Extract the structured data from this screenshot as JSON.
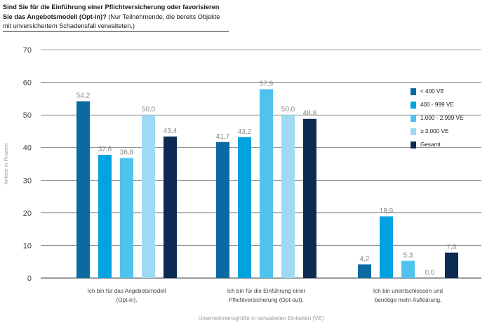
{
  "title": {
    "bold": "Sind Sie für die Einführung einer Pflichtversicherung oder favorisieren Sie das Angebotsmodell (Opt-in)?",
    "normal": " (Nur Teilnehmende, die bereits Objekte mit unversichertem Schadensfall verwalteten.)"
  },
  "chart_data": {
    "type": "bar",
    "ylabel": "Anteile in Prozent",
    "xlabel": "Unternehmensgröße in verwalteten Einheiten (VE)",
    "ylim": [
      0,
      70
    ],
    "yticks": [
      0,
      10,
      20,
      30,
      40,
      50,
      60,
      70
    ],
    "grid": true,
    "legend_position": "right",
    "categories": [
      [
        "Ich bin für das Angebotsmodell",
        "(Opt-in)."
      ],
      [
        "Ich bin für die Einführung einer",
        "Pflichtversicherung (Opt-out)."
      ],
      [
        "Ich bin unentschlossen und",
        "benötige mehr Aufklärung."
      ]
    ],
    "series": [
      {
        "name": "< 400 VE",
        "color": "#0a6aa1",
        "values": [
          54.2,
          41.7,
          4.2
        ],
        "labels": [
          "54,2",
          "41,7",
          "4,2"
        ]
      },
      {
        "name": "400 - 999 VE",
        "color": "#00a3e0",
        "values": [
          37.8,
          43.2,
          18.9
        ],
        "labels": [
          "37,8",
          "43,2",
          "18,9"
        ]
      },
      {
        "name": "1.000 - 2.999 VE",
        "color": "#4fc3ee",
        "values": [
          36.8,
          57.9,
          5.3
        ],
        "labels": [
          "36,8",
          "57,9",
          "5,3"
        ]
      },
      {
        "name": "≥ 3.000 VE",
        "color": "#9fdaf5",
        "values": [
          50.0,
          50.0,
          0.0
        ],
        "labels": [
          "50,0",
          "50,0",
          "0,0"
        ]
      },
      {
        "name": "Gesamt",
        "color": "#0d2b52",
        "values": [
          43.4,
          48.8,
          7.8
        ],
        "labels": [
          "43,4",
          "48,8",
          "7,8"
        ]
      }
    ]
  }
}
